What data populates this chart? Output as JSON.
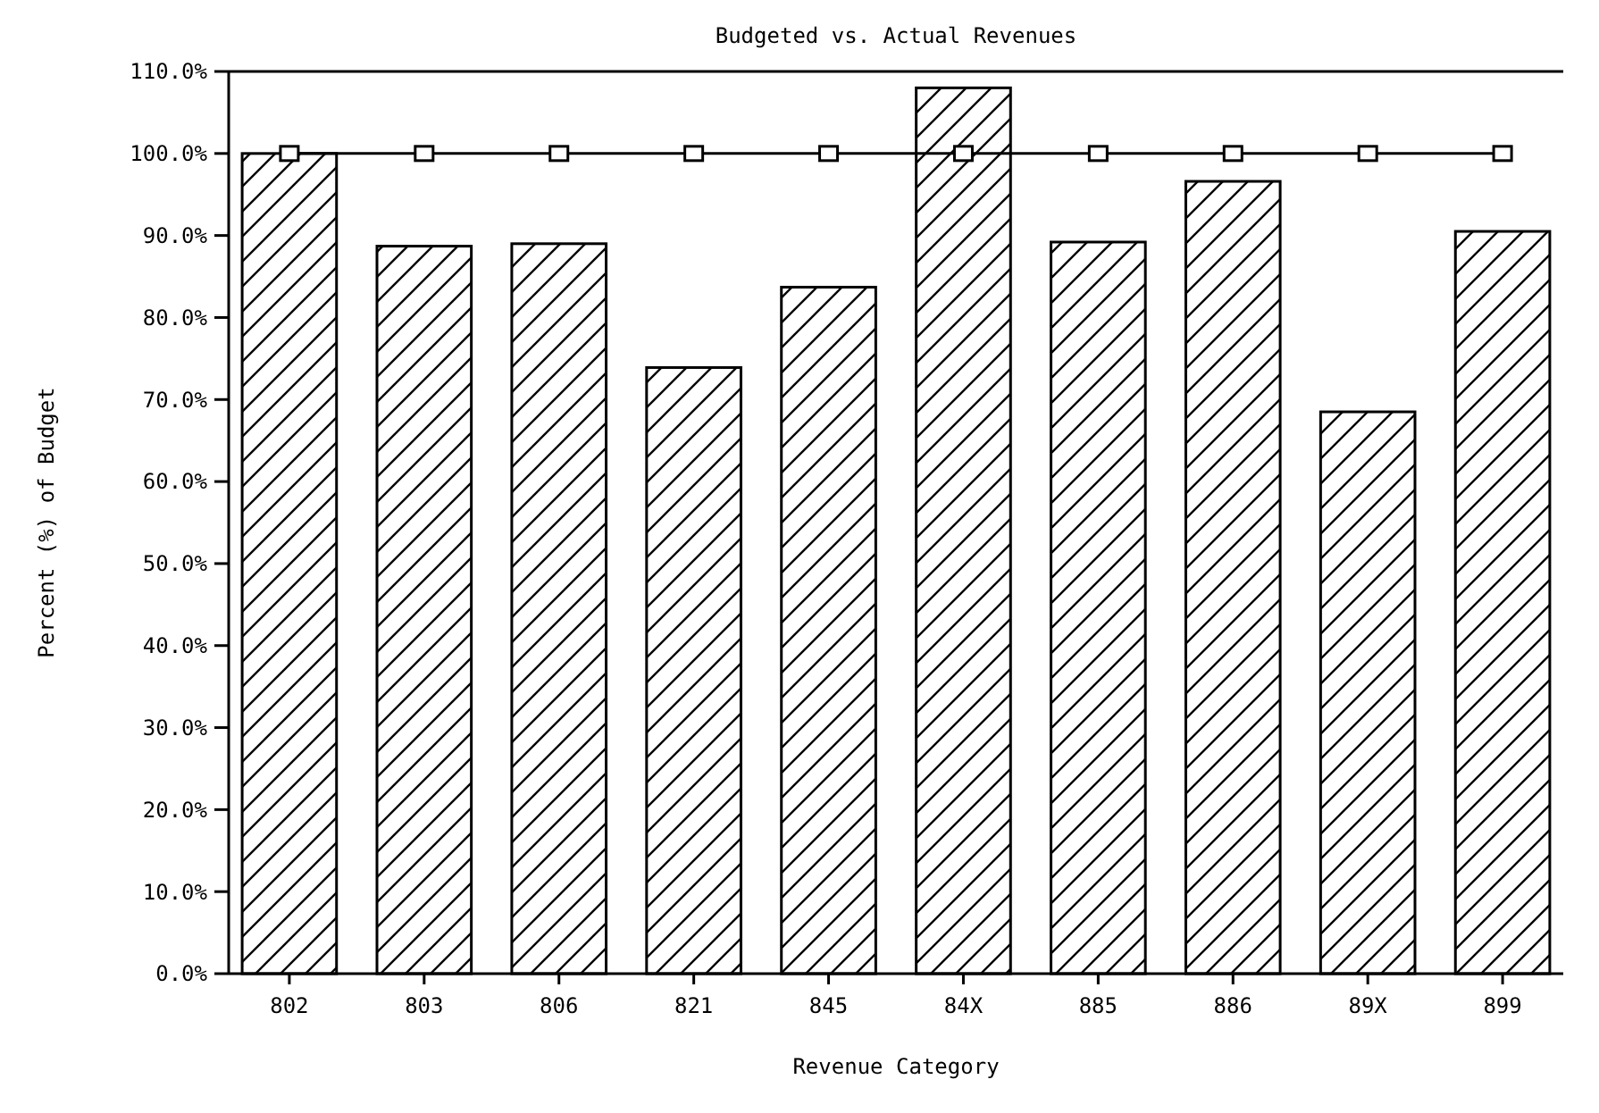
{
  "chart_data": {
    "type": "bar",
    "title": "Budgeted vs. Actual Revenues",
    "xlabel": "Revenue Category",
    "ylabel": "Percent (%) of Budget",
    "categories": [
      "802",
      "803",
      "806",
      "821",
      "845",
      "84X",
      "885",
      "886",
      "89X",
      "899"
    ],
    "series": [
      {
        "color": "#000000",
        "values": [
          100,
          88.7,
          89.0,
          73.9,
          83.7,
          108.0,
          89.2,
          96.6,
          68.5,
          90.5
        ]
      },
      {
        "type": "line",
        "color": "#000000",
        "marker": "square",
        "values": [
          100,
          100,
          100,
          100,
          100,
          100,
          100,
          100,
          100,
          100
        ]
      }
    ],
    "ylim": [
      0,
      110
    ],
    "yticks": [
      {
        "value": 0,
        "label": "0.0%"
      },
      {
        "value": 10,
        "label": "10.0%"
      },
      {
        "value": 20,
        "label": "20.0%"
      },
      {
        "value": 30,
        "label": "30.0%"
      },
      {
        "value": 40,
        "label": "40.0%"
      },
      {
        "value": 50,
        "label": "50.0%"
      },
      {
        "value": 60,
        "label": "60.0%"
      },
      {
        "value": 70,
        "label": "70.0%"
      },
      {
        "value": 80,
        "label": "80.0%"
      },
      {
        "value": 90,
        "label": "90.0%"
      },
      {
        "value": 100,
        "label": "100.0%"
      },
      {
        "value": 110,
        "label": "110.0%"
      }
    ],
    "grid": false
  }
}
